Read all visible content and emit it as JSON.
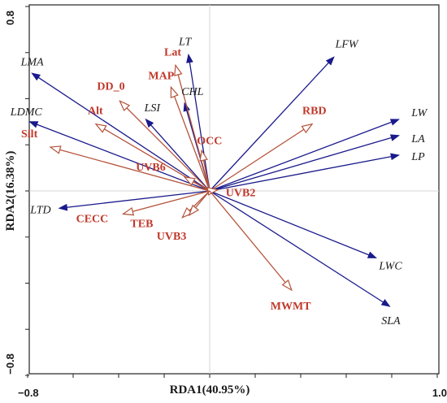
{
  "chart_data": {
    "type": "biplot",
    "xlabel": "RDA1(40.95%)",
    "ylabel": "RDA2(16.38%)",
    "xlim": [
      -0.8,
      1.0
    ],
    "ylim": [
      -0.8,
      0.8
    ],
    "x_ticks": [
      {
        "value": -0.8,
        "label": "−0.8"
      },
      {
        "value": 1.0,
        "label": "1.0"
      }
    ],
    "y_ticks": [
      {
        "value": 0.8,
        "label": "0.8"
      },
      {
        "value": -0.8,
        "label": "−0.8"
      }
    ],
    "colors": {
      "traits": "#1a1a8c",
      "environment": "#b5533a",
      "env_text": "#c0392b"
    },
    "traits": [
      {
        "name": "LFW",
        "x": 0.545,
        "y": 0.58
      },
      {
        "name": "LW",
        "x": 0.83,
        "y": 0.31
      },
      {
        "name": "LA",
        "x": 0.83,
        "y": 0.24
      },
      {
        "name": "LP",
        "x": 0.83,
        "y": 0.155
      },
      {
        "name": "LWC",
        "x": 0.73,
        "y": -0.29
      },
      {
        "name": "SLA",
        "x": 0.79,
        "y": -0.5
      },
      {
        "name": "LT",
        "x": -0.093,
        "y": 0.59
      },
      {
        "name": "CHL",
        "x": -0.11,
        "y": 0.38
      },
      {
        "name": "LSI",
        "x": -0.28,
        "y": 0.31
      },
      {
        "name": "LMA",
        "x": -0.78,
        "y": 0.51
      },
      {
        "name": "LDMC",
        "x": -0.79,
        "y": 0.3
      },
      {
        "name": "LTD",
        "x": -0.66,
        "y": -0.075
      }
    ],
    "environment": [
      {
        "name": "Lat",
        "x": -0.15,
        "y": 0.545
      },
      {
        "name": "MAP",
        "x": -0.17,
        "y": 0.45
      },
      {
        "name": "DD_0",
        "x": -0.395,
        "y": 0.39
      },
      {
        "name": "Alt",
        "x": -0.5,
        "y": 0.29
      },
      {
        "name": "OCC",
        "x": -0.035,
        "y": 0.175
      },
      {
        "name": "RBD",
        "x": 0.45,
        "y": 0.29
      },
      {
        "name": "Silt",
        "x": -0.7,
        "y": 0.19
      },
      {
        "name": "UVB6",
        "x": -0.11,
        "y": 0.06
      },
      {
        "name": "UVB2",
        "x": 0.035,
        "y": 0.005
      },
      {
        "name": "CECC",
        "x": -0.38,
        "y": -0.1
      },
      {
        "name": "TEB",
        "x": -0.12,
        "y": -0.115
      },
      {
        "name": "UVB3",
        "x": -0.09,
        "y": -0.105
      },
      {
        "name": "MWMT",
        "x": 0.36,
        "y": -0.43
      }
    ]
  }
}
